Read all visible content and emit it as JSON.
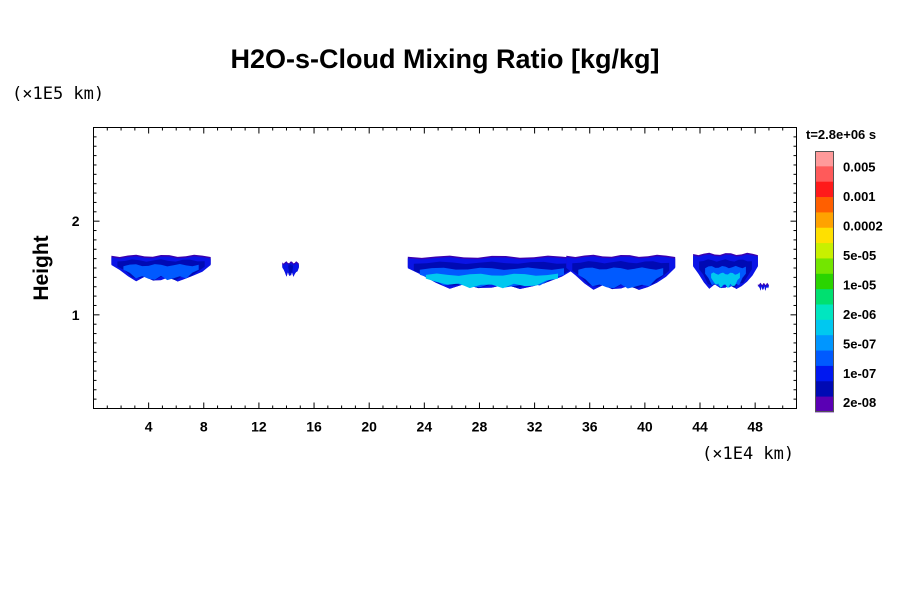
{
  "chart_data": {
    "type": "heatmap",
    "title": "H2O-s-Cloud Mixing Ratio [kg/kg]",
    "ylabel": "Height",
    "x_unit_label": "(×1E4 km)",
    "y_unit_label": "(×1E5 km)",
    "time_label": "t=2.8e+06 s",
    "xlim": [
      0,
      51
    ],
    "ylim": [
      0,
      3
    ],
    "x_ticks": [
      4,
      8,
      12,
      16,
      20,
      24,
      28,
      32,
      36,
      40,
      44,
      48
    ],
    "y_ticks": [
      1,
      2
    ],
    "colorbar": {
      "labels": [
        "0.005",
        "0.001",
        "0.0002",
        "5e-05",
        "1e-05",
        "2e-06",
        "5e-07",
        "1e-07",
        "2e-08"
      ],
      "colors": [
        "#ff9a9a",
        "#ff5a5a",
        "#ff1a1a",
        "#ff5f00",
        "#ffa200",
        "#ffe000",
        "#c8f000",
        "#73e600",
        "#2ad400",
        "#00e070",
        "#00e6c0",
        "#00c8f0",
        "#0096ff",
        "#005aff",
        "#0018f0",
        "#000ab4",
        "#5a00b4"
      ]
    },
    "clouds": [
      {
        "x_start": 1.3,
        "x_end": 8.5,
        "top": 1.63,
        "bottom": 1.38,
        "levels": [
          "5e-07",
          "1e-07"
        ]
      },
      {
        "x_start": 13.7,
        "x_end": 14.9,
        "top": 1.56,
        "bottom": 1.43,
        "levels": [
          "1e-07"
        ]
      },
      {
        "x_start": 22.8,
        "x_end": 35.0,
        "top": 1.62,
        "bottom": 1.3,
        "levels": [
          "2e-06",
          "5e-07",
          "1e-07"
        ]
      },
      {
        "x_start": 34.3,
        "x_end": 42.2,
        "top": 1.63,
        "bottom": 1.29,
        "levels": [
          "5e-07",
          "1e-07"
        ]
      },
      {
        "x_start": 43.5,
        "x_end": 48.2,
        "top": 1.65,
        "bottom": 1.3,
        "levels": [
          "2e-06",
          "5e-07",
          "1e-07"
        ]
      },
      {
        "x_start": 48.2,
        "x_end": 49.0,
        "top": 1.33,
        "bottom": 1.28,
        "levels": [
          "5e-07"
        ]
      }
    ]
  }
}
